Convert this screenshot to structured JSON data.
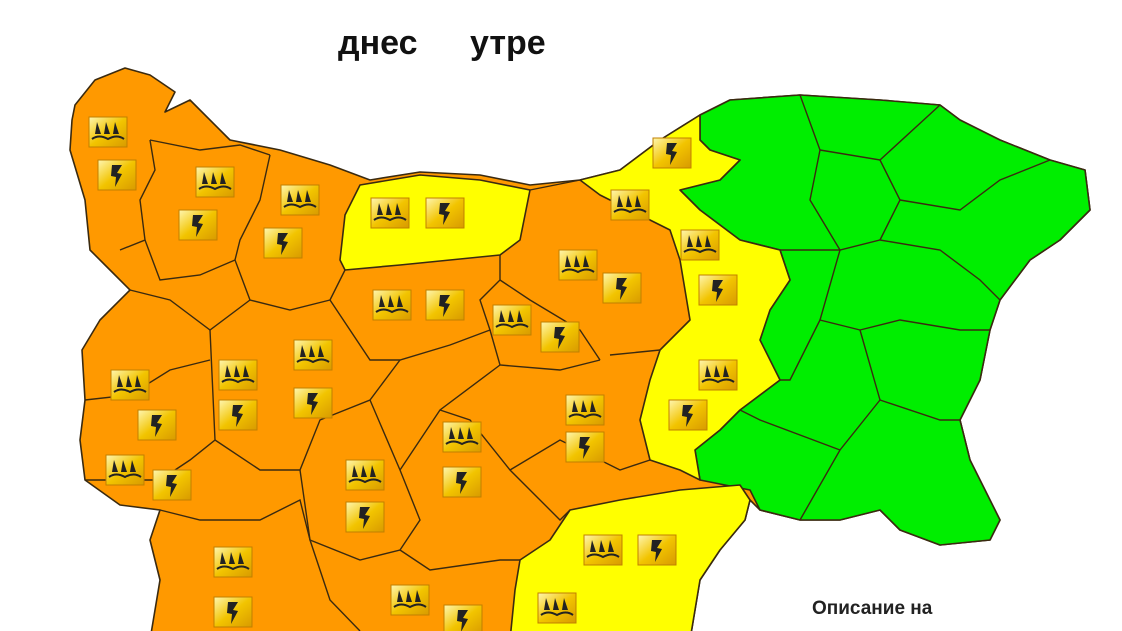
{
  "header": {
    "today_label": "днес",
    "tomorrow_label": "утре"
  },
  "legend": {
    "description_label": "Описание на"
  },
  "colors": {
    "orange": "#ff9900",
    "yellow": "#ffff00",
    "green": "#00ee00",
    "border": "#3a2a10"
  },
  "warning_icons": {
    "rain": "rain-flood-icon",
    "thunder": "thunderstorm-icon"
  }
}
